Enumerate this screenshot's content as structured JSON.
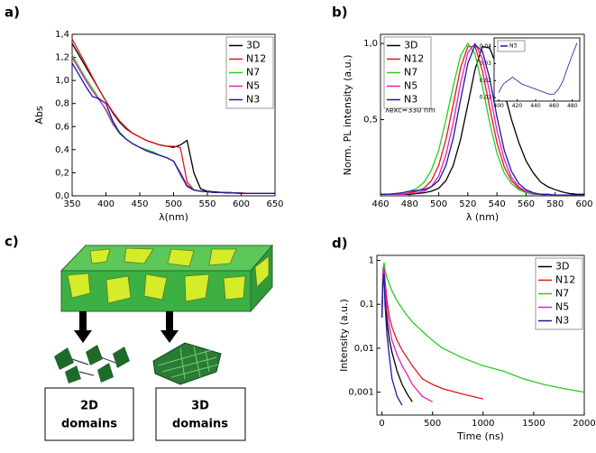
{
  "chart_data": [
    {
      "type": "line",
      "label": "a)",
      "xlabel": "λ(nm)",
      "ylabel": "Abs",
      "legend": "upper right",
      "x": [
        350,
        360,
        370,
        380,
        390,
        400,
        410,
        420,
        430,
        440,
        450,
        460,
        470,
        480,
        490,
        500,
        510,
        520,
        530,
        540,
        550,
        560,
        570,
        580,
        590,
        600,
        610,
        620,
        630,
        640,
        650
      ],
      "xlim": [
        350,
        650
      ],
      "ylim": [
        0,
        1.4
      ],
      "xticks": [
        350,
        400,
        450,
        500,
        550,
        600,
        650
      ],
      "yticks": [
        {
          "value": 0,
          "label": "0,0"
        },
        {
          "value": 0.2,
          "label": "0,2"
        },
        {
          "value": 0.4,
          "label": "0,4"
        },
        {
          "value": 0.6,
          "label": "0,6"
        },
        {
          "value": 0.8,
          "label": "0,8"
        },
        {
          "value": 1.0,
          "label": "1,0"
        },
        {
          "value": 1.2,
          "label": "1,2"
        },
        {
          "value": 1.4,
          "label": "1,4"
        }
      ],
      "series": [
        {
          "name": "3D",
          "color": "#000000",
          "values": [
            1.32,
            1.22,
            1.12,
            1.02,
            0.92,
            0.82,
            0.72,
            0.64,
            0.58,
            0.54,
            0.51,
            0.48,
            0.46,
            0.44,
            0.43,
            0.42,
            0.44,
            0.48,
            0.2,
            0.06,
            0.04,
            0.035,
            0.03,
            0.03,
            0.025,
            0.025,
            0.02,
            0.02,
            0.02,
            0.02,
            0.02
          ]
        },
        {
          "name": "N12",
          "color": "#e8141b",
          "values": [
            1.36,
            1.25,
            1.14,
            1.03,
            0.92,
            0.82,
            0.73,
            0.65,
            0.59,
            0.54,
            0.51,
            0.48,
            0.46,
            0.44,
            0.43,
            0.43,
            0.42,
            0.12,
            0.05,
            0.04,
            0.035,
            0.03,
            0.03,
            0.03,
            0.025,
            0.025,
            0.02,
            0.02,
            0.02,
            0.02,
            0.02
          ]
        },
        {
          "name": "N7",
          "color": "#22d022",
          "values": [
            1.22,
            1.12,
            1.02,
            0.93,
            0.84,
            0.74,
            0.62,
            0.54,
            0.49,
            0.45,
            0.42,
            0.4,
            0.38,
            0.35,
            0.33,
            0.3,
            0.18,
            0.08,
            0.05,
            0.04,
            0.035,
            0.03,
            0.03,
            0.025,
            0.025,
            0.02,
            0.02,
            0.02,
            0.02,
            0.02,
            0.02
          ]
        },
        {
          "name": "N5",
          "color": "#e020c0",
          "values": [
            1.2,
            1.1,
            1.0,
            0.91,
            0.83,
            0.75,
            0.63,
            0.55,
            0.49,
            0.45,
            0.42,
            0.39,
            0.37,
            0.35,
            0.33,
            0.3,
            0.19,
            0.08,
            0.05,
            0.04,
            0.035,
            0.03,
            0.03,
            0.025,
            0.025,
            0.02,
            0.02,
            0.02,
            0.02,
            0.02,
            0.02
          ]
        },
        {
          "name": "N3",
          "color": "#1a1aa0",
          "values": [
            1.15,
            1.05,
            0.95,
            0.86,
            0.84,
            0.8,
            0.65,
            0.55,
            0.49,
            0.45,
            0.42,
            0.39,
            0.37,
            0.35,
            0.33,
            0.3,
            0.2,
            0.09,
            0.05,
            0.04,
            0.035,
            0.03,
            0.03,
            0.025,
            0.025,
            0.02,
            0.02,
            0.02,
            0.02,
            0.02,
            0.02
          ]
        }
      ]
    },
    {
      "type": "line",
      "label": "b)",
      "xlabel": "λ (nm)",
      "ylabel": "Norm. PL intensity (a.u.)",
      "legend": "upper left",
      "annotation": "λexc=330 nm",
      "x": [
        460,
        465,
        470,
        475,
        480,
        485,
        490,
        495,
        500,
        505,
        510,
        515,
        520,
        525,
        530,
        535,
        540,
        545,
        550,
        555,
        560,
        565,
        570,
        575,
        580,
        585,
        590,
        595,
        600
      ],
      "xlim": [
        460,
        600
      ],
      "ylim": [
        0,
        1.06
      ],
      "xticks": [
        460,
        480,
        500,
        520,
        540,
        560,
        580,
        600
      ],
      "yticks": [
        {
          "value": 0.5,
          "label": "0,5"
        },
        {
          "value": 1.0,
          "label": "1,0"
        }
      ],
      "series": [
        {
          "name": "3D",
          "color": "#000000",
          "values": [
            0.01,
            0.01,
            0.01,
            0.01,
            0.01,
            0.015,
            0.02,
            0.03,
            0.05,
            0.1,
            0.2,
            0.37,
            0.6,
            0.83,
            0.98,
            0.97,
            0.85,
            0.68,
            0.5,
            0.35,
            0.23,
            0.15,
            0.09,
            0.06,
            0.04,
            0.025,
            0.015,
            0.01,
            0.01
          ]
        },
        {
          "name": "N12",
          "color": "#e8141b",
          "values": [
            0.01,
            0.01,
            0.01,
            0.01,
            0.02,
            0.03,
            0.05,
            0.1,
            0.2,
            0.37,
            0.6,
            0.84,
            0.98,
            0.98,
            0.82,
            0.58,
            0.35,
            0.19,
            0.1,
            0.05,
            0.025,
            0.012,
            0.01,
            0.005,
            0.005,
            0.005,
            0.005,
            0.005,
            0.005
          ]
        },
        {
          "name": "N7",
          "color": "#22d022",
          "values": [
            0.01,
            0.01,
            0.01,
            0.02,
            0.03,
            0.05,
            0.09,
            0.17,
            0.3,
            0.5,
            0.72,
            0.92,
            1.0,
            0.93,
            0.72,
            0.48,
            0.28,
            0.15,
            0.08,
            0.04,
            0.02,
            0.01,
            0.01,
            0.01,
            0.005,
            0.005,
            0.005,
            0.005,
            0.005
          ]
        },
        {
          "name": "N5",
          "color": "#e020c0",
          "values": [
            0.01,
            0.01,
            0.01,
            0.01,
            0.015,
            0.02,
            0.03,
            0.06,
            0.13,
            0.27,
            0.48,
            0.74,
            0.94,
            1.0,
            0.9,
            0.68,
            0.43,
            0.24,
            0.12,
            0.06,
            0.03,
            0.015,
            0.01,
            0.005,
            0.005,
            0.005,
            0.005,
            0.005,
            0.005
          ]
        },
        {
          "name": "N3",
          "color": "#1a1aa0",
          "values": [
            0.01,
            0.01,
            0.015,
            0.02,
            0.03,
            0.035,
            0.04,
            0.06,
            0.1,
            0.2,
            0.38,
            0.63,
            0.87,
            0.99,
            0.95,
            0.77,
            0.52,
            0.3,
            0.16,
            0.08,
            0.04,
            0.02,
            0.01,
            0.01,
            0.005,
            0.005,
            0.005,
            0.005,
            0.005
          ]
        }
      ]
    },
    {
      "type": "line",
      "legend": "upper left",
      "x": [
        400,
        405,
        410,
        415,
        420,
        425,
        430,
        435,
        440,
        445,
        450,
        455,
        460,
        465,
        470,
        475,
        480,
        485
      ],
      "xlim": [
        395,
        488
      ],
      "ylim": [
        0.008,
        0.045
      ],
      "xticks": [
        400,
        420,
        440,
        460,
        480
      ],
      "yticks": [
        {
          "value": 0.01,
          "label": "0,01"
        },
        {
          "value": 0.02,
          "label": "0,02"
        },
        {
          "value": 0.03,
          "label": "0,03"
        },
        {
          "value": 0.04,
          "label": "0,04"
        }
      ],
      "series": [
        {
          "name": "N3",
          "color": "#1a1aa0",
          "values": [
            0.013,
            0.018,
            0.02,
            0.022,
            0.02,
            0.018,
            0.017,
            0.016,
            0.015,
            0.014,
            0.013,
            0.012,
            0.012,
            0.015,
            0.02,
            0.028,
            0.035,
            0.042
          ]
        }
      ]
    },
    {
      "type": "line",
      "label": "d)",
      "xlabel": "Time (ns)",
      "ylabel": "Intensity (a.u.)",
      "legend": "upper right",
      "yscale": "log",
      "x": [
        0,
        10,
        20,
        30,
        50,
        75,
        100,
        150,
        200,
        250,
        300,
        400,
        500,
        600,
        800,
        1000,
        1200,
        1400,
        1600,
        1800,
        2000
      ],
      "xlim": [
        -50,
        2000
      ],
      "ylim": [
        0.0003,
        1.3
      ],
      "xticks": [
        0,
        500,
        1000,
        1500,
        2000
      ],
      "yticks": [
        {
          "value": 0.001,
          "label": "0,001"
        },
        {
          "value": 0.01,
          "label": "0,01"
        },
        {
          "value": 0.1,
          "label": "0,1"
        },
        1
      ],
      "series": [
        {
          "name": "3D",
          "color": "#000000",
          "values": [
            0.05,
            0.4,
            0.6,
            0.15,
            0.04,
            0.015,
            0.008,
            0.003,
            0.0015,
            0.0009,
            0.0006,
            null,
            null,
            null,
            null,
            null,
            null,
            null,
            null,
            null,
            null
          ]
        },
        {
          "name": "N12",
          "color": "#e8141b",
          "values": [
            0.05,
            0.6,
            0.8,
            0.35,
            0.12,
            0.05,
            0.03,
            0.015,
            0.009,
            0.006,
            0.004,
            0.002,
            0.0015,
            0.0012,
            0.0009,
            0.0007,
            null,
            null,
            null,
            null,
            null
          ]
        },
        {
          "name": "N7",
          "color": "#22d022",
          "values": [
            0.05,
            0.6,
            0.9,
            0.6,
            0.4,
            0.28,
            0.2,
            0.12,
            0.08,
            0.055,
            0.04,
            0.024,
            0.015,
            0.01,
            0.006,
            0.004,
            0.003,
            0.002,
            0.0015,
            0.0012,
            0.001
          ]
        },
        {
          "name": "N5",
          "color": "#e020c0",
          "values": [
            0.05,
            0.5,
            0.7,
            0.25,
            0.07,
            0.03,
            0.015,
            0.007,
            0.004,
            0.0025,
            0.0015,
            0.0008,
            0.0006,
            null,
            null,
            null,
            null,
            null,
            null,
            null,
            null
          ]
        },
        {
          "name": "N3",
          "color": "#1a1aa0",
          "values": [
            0.05,
            0.3,
            0.5,
            0.1,
            0.02,
            0.006,
            0.002,
            0.0008,
            0.0005,
            null,
            null,
            null,
            null,
            null,
            null,
            null,
            null,
            null,
            null,
            null,
            null
          ]
        }
      ]
    }
  ],
  "diagram": {
    "label": "c)",
    "boxes": [
      [
        "2D",
        "domains"
      ],
      [
        "3D",
        "domains"
      ]
    ]
  }
}
